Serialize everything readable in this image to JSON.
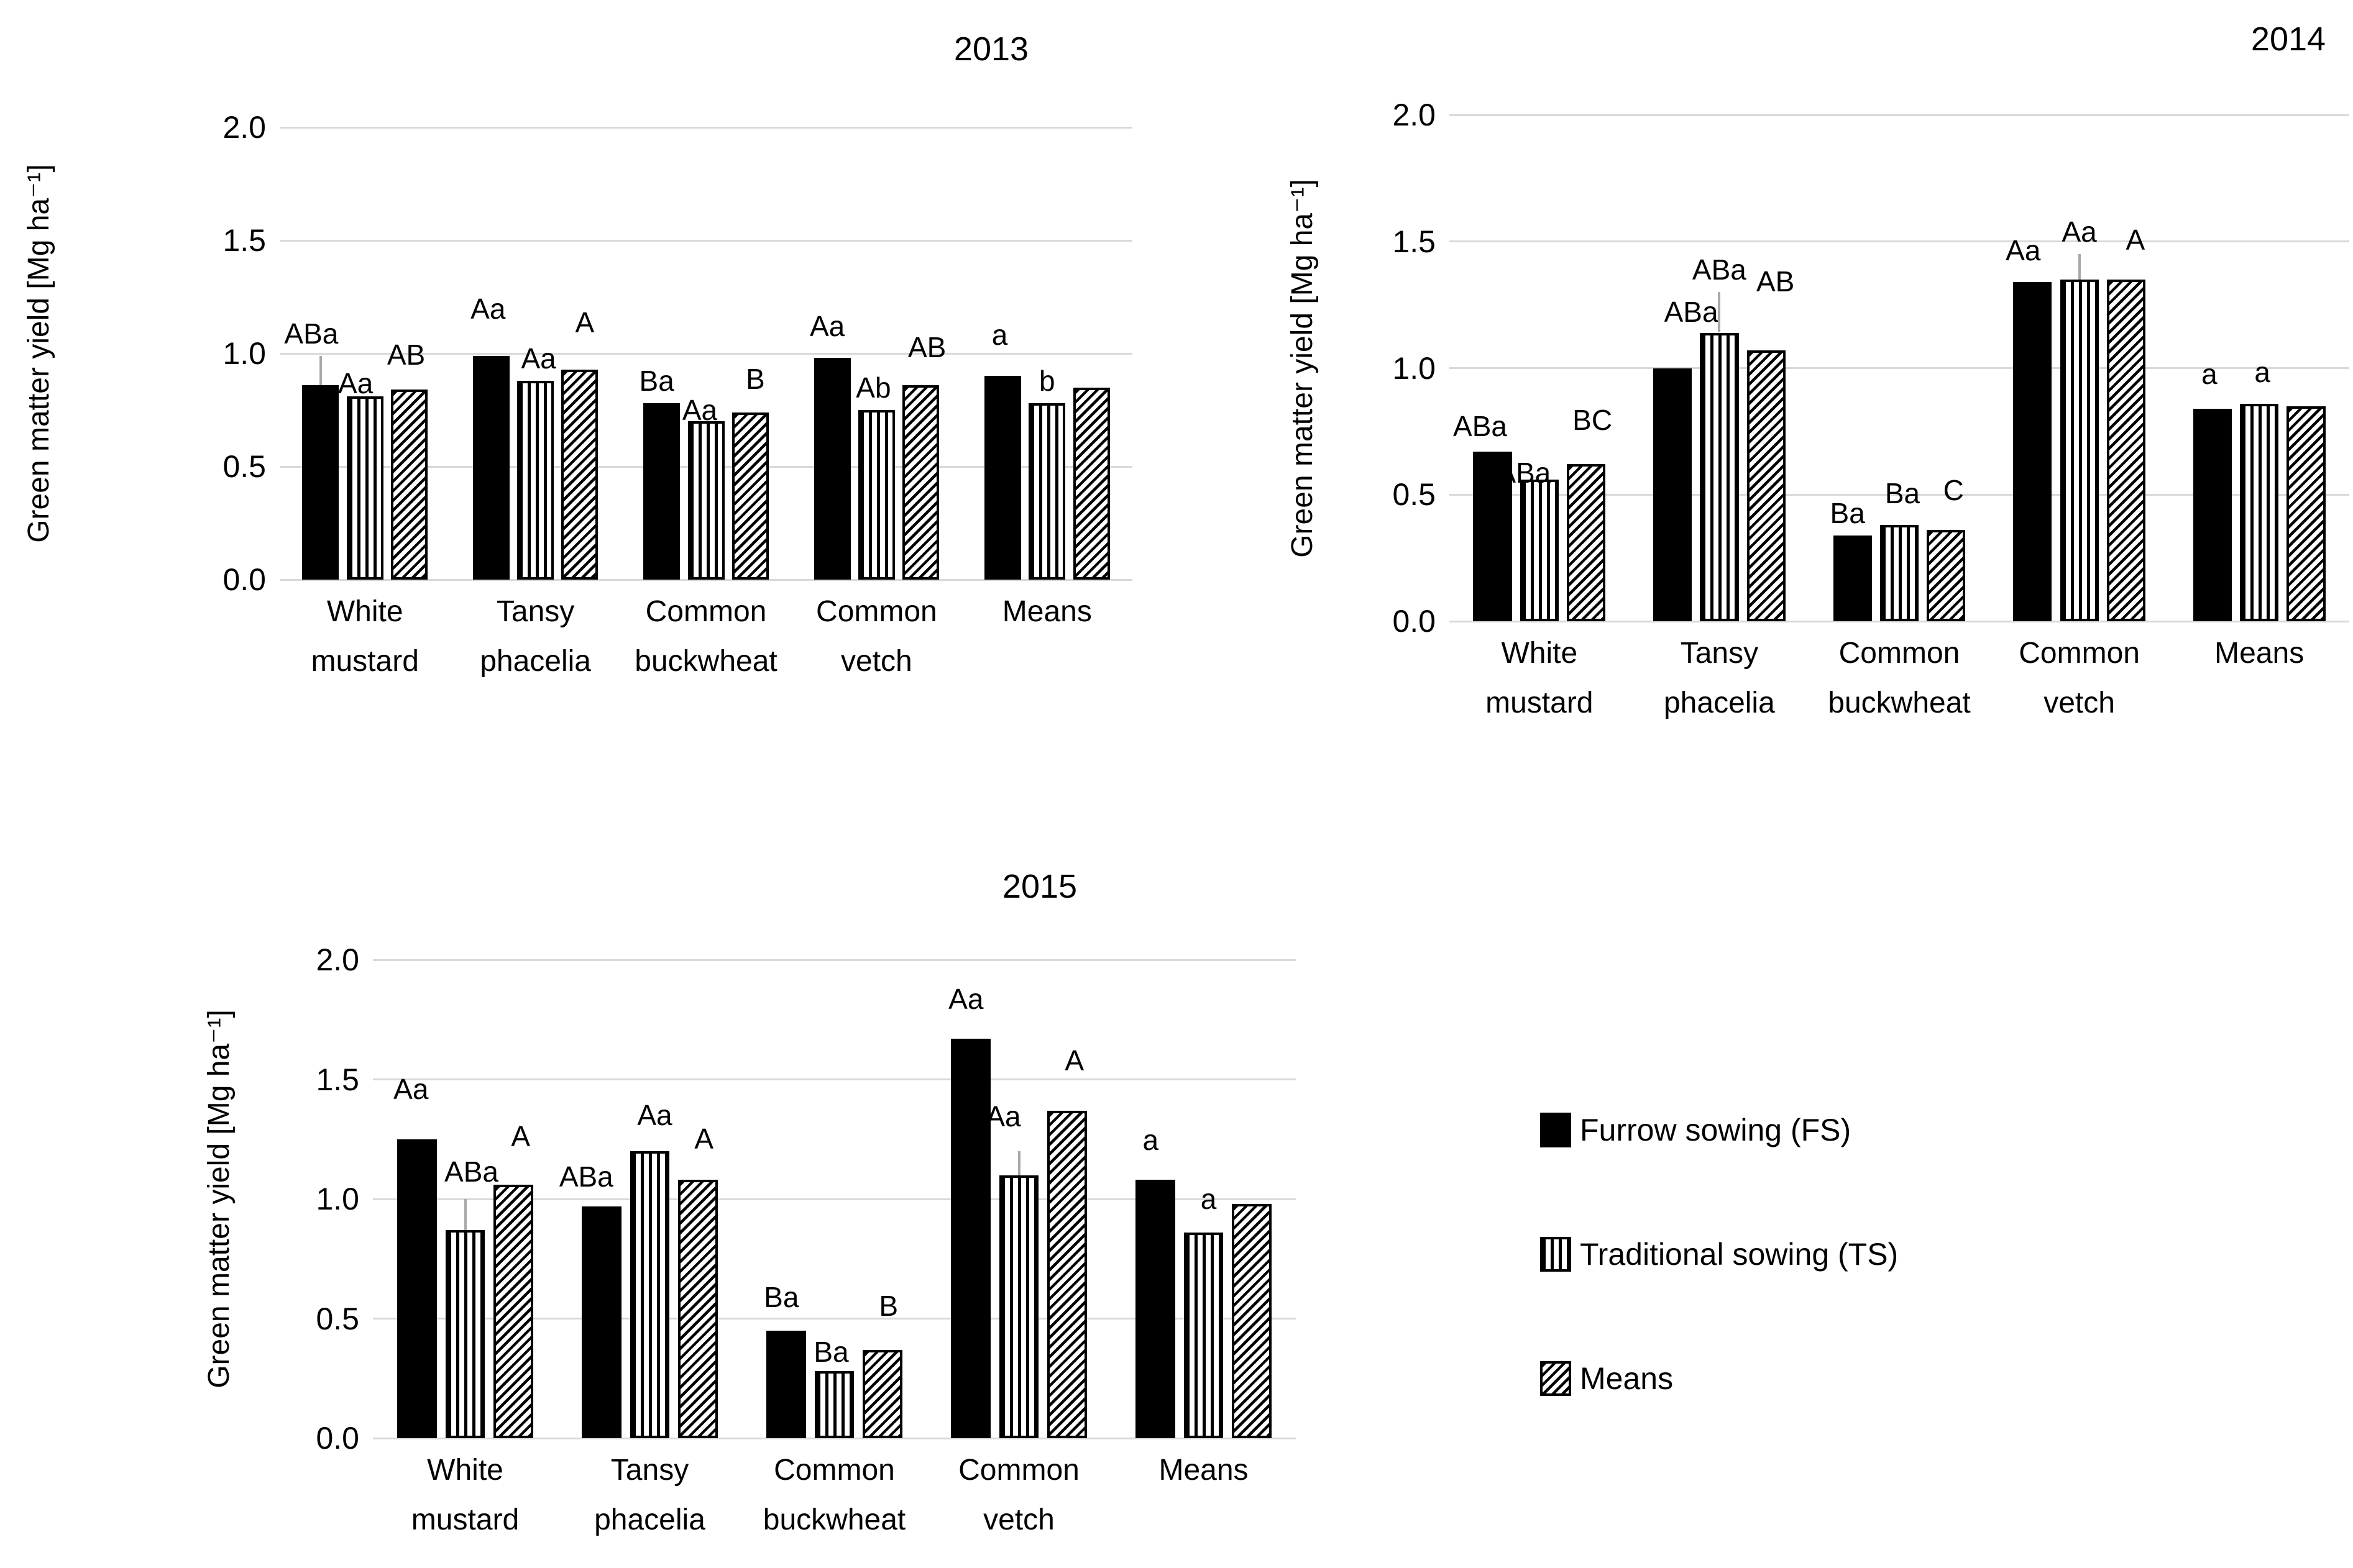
{
  "figure": {
    "ylabel": "Green matter yield [Mg ha⁻¹]",
    "ytick_labels": [
      "2.0",
      "1.5",
      "1.0",
      "0.5",
      "0.0"
    ]
  },
  "legend": {
    "items": [
      {
        "label": "Furrow sowing (FS)",
        "pattern": "solid"
      },
      {
        "label": "Traditional sowing (TS)",
        "pattern": "vstripes"
      },
      {
        "label": "Means",
        "pattern": "diag"
      }
    ]
  },
  "colors": {
    "bar_fill": "#000000",
    "gridline": "#d9d9d9",
    "error_bar": "#a9a9a9",
    "background": "#ffffff"
  },
  "chart_data": [
    {
      "type": "bar",
      "title": "2013",
      "ylabel": "Green matter yield [Mg ha⁻¹]",
      "ylim": [
        0.0,
        2.0
      ],
      "yticks": [
        2.0,
        1.5,
        1.0,
        0.5,
        0.0
      ],
      "ytick_labels": [
        "2.0",
        "1.5",
        "1.0",
        "0.5",
        "0.0"
      ],
      "grid": true,
      "legend_position": "none",
      "categories": [
        "White mustard",
        "Tansy phacelia",
        "Common buckwheat",
        "Common vetch",
        "Means"
      ],
      "categories_lines": [
        [
          "White",
          "mustard"
        ],
        [
          "Tansy",
          "phacelia"
        ],
        [
          "Common",
          "buckwheat"
        ],
        [
          "Common",
          "vetch"
        ],
        [
          "Means"
        ]
      ],
      "series": [
        {
          "name": "Furrow sowing (FS)",
          "pattern": "solid",
          "values": [
            0.86,
            0.99,
            0.78,
            0.98,
            0.9
          ],
          "annotations": [
            "ABa",
            "Aa",
            "Ba",
            "Aa",
            "a"
          ],
          "ann_dx": [
            -15,
            -5,
            -8,
            -8,
            -5
          ],
          "ann_dy": [
            0,
            -40,
            0,
            -15,
            -30
          ],
          "error_up": [
            0.99,
            null,
            null,
            null,
            null
          ]
        },
        {
          "name": "Traditional sowing (TS)",
          "pattern": "vstripes",
          "values": [
            0.81,
            0.88,
            0.7,
            0.75,
            0.78
          ],
          "annotations": [
            "Aa",
            "Aa",
            "Aa",
            "Ab",
            "b"
          ],
          "ann_dx": [
            -15,
            5,
            -10,
            -5,
            0
          ],
          "ann_dy": [
            15,
            0,
            18,
            0,
            0
          ],
          "error_up": [
            null,
            null,
            null,
            null,
            null
          ]
        },
        {
          "name": "Means",
          "pattern": "diag",
          "values": [
            0.84,
            0.93,
            0.74,
            0.86,
            0.85
          ],
          "annotations": [
            "AB",
            "A",
            "B",
            "AB",
            ""
          ],
          "ann_dx": [
            -5,
            8,
            8,
            10,
            0
          ],
          "ann_dy": [
            -20,
            -40,
            -18,
            -25,
            0
          ],
          "error_up": [
            null,
            null,
            null,
            null,
            null
          ]
        }
      ]
    },
    {
      "type": "bar",
      "title": "2014",
      "ylabel": "Green matter yield [Mg ha⁻¹]",
      "ylim": [
        0.0,
        2.0
      ],
      "yticks": [
        2.0,
        1.5,
        1.0,
        0.5,
        0.0
      ],
      "ytick_labels": [
        "2.0",
        "1.5",
        "1.0",
        "0.5",
        "0.0"
      ],
      "grid": true,
      "legend_position": "none",
      "categories": [
        "White mustard",
        "Tansy phacelia",
        "Common buckwheat",
        "Common vetch",
        "Means"
      ],
      "categories_lines": [
        [
          "White",
          "mustard"
        ],
        [
          "Tansy",
          "phacelia"
        ],
        [
          "Common",
          "buckwheat"
        ],
        [
          "Common",
          "vetch"
        ],
        [
          "Means"
        ]
      ],
      "series": [
        {
          "name": "Furrow sowing (FS)",
          "pattern": "solid",
          "values": [
            0.67,
            1.0,
            0.34,
            1.34,
            0.84
          ],
          "annotations": [
            "ABa",
            "ABa",
            "Ba",
            "Aa",
            "a"
          ],
          "ann_dx": [
            -20,
            30,
            -8,
            -15,
            -5
          ],
          "ann_dy": [
            -5,
            -55,
            0,
            -15,
            -20
          ],
          "error_up": [
            null,
            null,
            null,
            null,
            null
          ]
        },
        {
          "name": "Traditional sowing (TS)",
          "pattern": "vstripes",
          "values": [
            0.56,
            1.14,
            0.38,
            1.35,
            0.86
          ],
          "annotations": [
            "ABa",
            "ABa",
            "Ba",
            "Aa",
            "a"
          ],
          "ann_dx": [
            -25,
            0,
            5,
            0,
            5
          ],
          "ann_dy": [
            25,
            0,
            -15,
            0,
            -15
          ],
          "error_up": [
            null,
            1.3,
            null,
            1.45,
            null
          ]
        },
        {
          "name": "Means",
          "pattern": "diag",
          "values": [
            0.62,
            1.07,
            0.36,
            1.35,
            0.85
          ],
          "annotations": [
            "BC",
            "AB",
            "C",
            "A",
            ""
          ],
          "ann_dx": [
            10,
            15,
            12,
            15,
            0
          ],
          "ann_dy": [
            -35,
            -75,
            -28,
            -28,
            0
          ],
          "error_up": [
            null,
            null,
            null,
            null,
            null
          ]
        }
      ]
    },
    {
      "type": "bar",
      "title": "2015",
      "ylabel": "Green matter yield [Mg ha⁻¹]",
      "ylim": [
        0.0,
        2.0
      ],
      "yticks": [
        2.0,
        1.5,
        1.0,
        0.5,
        0.0
      ],
      "ytick_labels": [
        "2.0",
        "1.5",
        "1.0",
        "0.5",
        "0.0"
      ],
      "grid": true,
      "legend_position": "right",
      "categories": [
        "White mustard",
        "Tansy phacelia",
        "Common buckwheat",
        "Common vetch",
        "Means"
      ],
      "categories_lines": [
        [
          "White",
          "mustard"
        ],
        [
          "Tansy",
          "phacelia"
        ],
        [
          "Common",
          "buckwheat"
        ],
        [
          "Common",
          "vetch"
        ],
        [
          "Means"
        ]
      ],
      "series": [
        {
          "name": "Furrow sowing (FS)",
          "pattern": "solid",
          "values": [
            1.25,
            0.97,
            0.45,
            1.67,
            1.08
          ],
          "annotations": [
            "Aa",
            "ABa",
            "Ba",
            "Aa",
            "a"
          ],
          "ann_dx": [
            -10,
            -25,
            -8,
            -8,
            -8
          ],
          "ann_dy": [
            -45,
            -12,
            -18,
            -28,
            -28
          ],
          "error_up": [
            null,
            null,
            null,
            null,
            null
          ]
        },
        {
          "name": "Traditional sowing (TS)",
          "pattern": "vstripes",
          "values": [
            0.87,
            1.2,
            0.28,
            1.1,
            0.86
          ],
          "annotations": [
            "ABa",
            "Aa",
            "Ba",
            "Aa",
            "a"
          ],
          "ann_dx": [
            10,
            8,
            -5,
            -25,
            8
          ],
          "ann_dy": [
            -8,
            -22,
            5,
            -20,
            -18
          ],
          "error_up": [
            1.0,
            null,
            null,
            1.2,
            null
          ]
        },
        {
          "name": "Means",
          "pattern": "diag",
          "values": [
            1.06,
            1.08,
            0.37,
            1.37,
            0.98
          ],
          "annotations": [
            "A",
            "A",
            "B",
            "A",
            ""
          ],
          "ann_dx": [
            12,
            10,
            10,
            12,
            0
          ],
          "ann_dy": [
            -42,
            -30,
            -35,
            -45,
            0
          ],
          "error_up": [
            null,
            null,
            null,
            null,
            null
          ]
        }
      ]
    }
  ]
}
